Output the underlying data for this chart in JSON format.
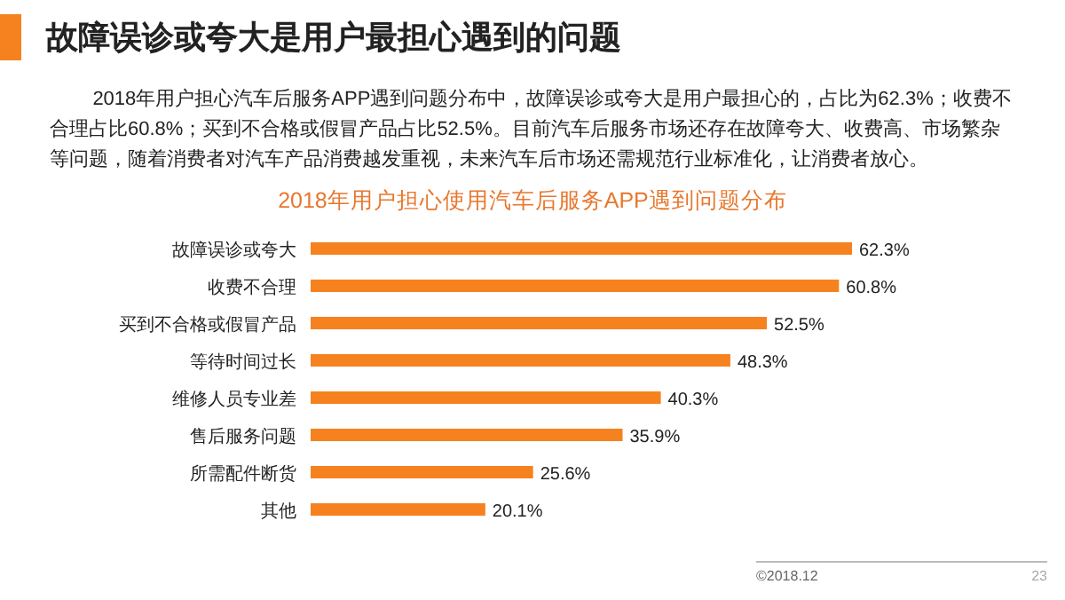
{
  "chart_data": {
    "type": "bar",
    "orientation": "horizontal",
    "title": "故障误诊或夸大是用户最担心遇到的问题",
    "subtitle": "2018年用户担心使用汽车后服务APP遇到问题分布",
    "annotations": [
      "2018年用户担心汽车后服务APP遇到问题分布中，故障误诊或夸大是用户最担心的，占比为62.3%；收费不合理占比60.8%；买到不合格或假冒产品占比52.5%。目前汽车后服务市场还存在故障夸大、收费高、市场繁杂等问题，随着消费者对汽车产品消费越发重视，未来汽车后市场还需规范行业标准化，让消费者放心。",
      "©2018.12",
      "23"
    ],
    "categories": [
      "故障误诊或夸大",
      "收费不合理",
      "买到不合格或假冒产品",
      "等待时间过长",
      "维修人员专业差",
      "售后服务问题",
      "所需配件断货",
      "其他"
    ],
    "values": [
      62.3,
      60.8,
      52.5,
      48.3,
      40.3,
      35.9,
      25.6,
      20.1
    ],
    "value_labels": [
      "62.3%",
      "60.8%",
      "52.5%",
      "48.3%",
      "40.3%",
      "35.9%",
      "25.6%",
      "20.1%"
    ],
    "color": "#f5821f"
  }
}
